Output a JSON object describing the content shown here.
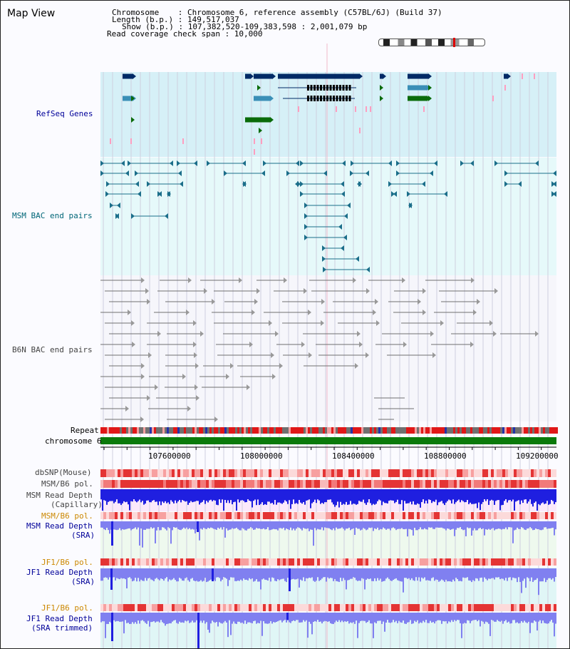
{
  "title": "Map View",
  "header": {
    "chromosome": "Chromosome    : Chromosome 6, reference assembly (C57BL/6J) (Build 37)",
    "length": "Length (b.p.) : 149,517,037",
    "show": "Show (b.p.) : 107,382,520-109,383,598 : 2,001,079 bp",
    "span": "Read coverage check span : 10,000"
  },
  "tracks": {
    "refseq": "RefSeq Genes",
    "msm_bac": "MSM BAC end pairs",
    "b6n_bac": "B6N BAC end pairs",
    "repeat": "Repeat",
    "chromosome": "chromosome 6",
    "dbsnp": "dbSNP(Mouse)",
    "msm_b6_pol_1": "MSM/B6 pol.",
    "msm_read_depth_cap_1": "MSM Read Depth",
    "msm_read_depth_cap_2": "(Capillary)",
    "msm_b6_pol_2": "MSM/B6 pol.",
    "msm_read_depth_sra_1": "MSM Read Depth",
    "msm_read_depth_sra_2": "(SRA)",
    "jf1_b6_pol_1": "JF1/B6 pol.",
    "jf1_read_depth_sra_1": "JF1 Read Depth",
    "jf1_read_depth_sra_2": "(SRA)",
    "jf1_b6_pol_2": "JF1/B6 pol.",
    "jf1_read_depth_trim_1": "JF1 Read Depth",
    "jf1_read_depth_trim_2": "(SRA trimmed)"
  },
  "axis": {
    "ticks": [
      "107600000",
      "108000000",
      "108400000",
      "108800000",
      "109200000"
    ]
  },
  "colors": {
    "label_blue": "#000099",
    "label_teal": "#006677",
    "label_gray": "#444444",
    "label_orange": "#cc8800",
    "gene_dark": "#002a66",
    "gene_mid": "#3a8fb7",
    "gene_green": "#0a6b0a",
    "bac_teal": "#1b6e8a",
    "bac_gray": "#707070",
    "depth_blue": "#1f1fe0",
    "depth_light": "#8080f0"
  }
}
